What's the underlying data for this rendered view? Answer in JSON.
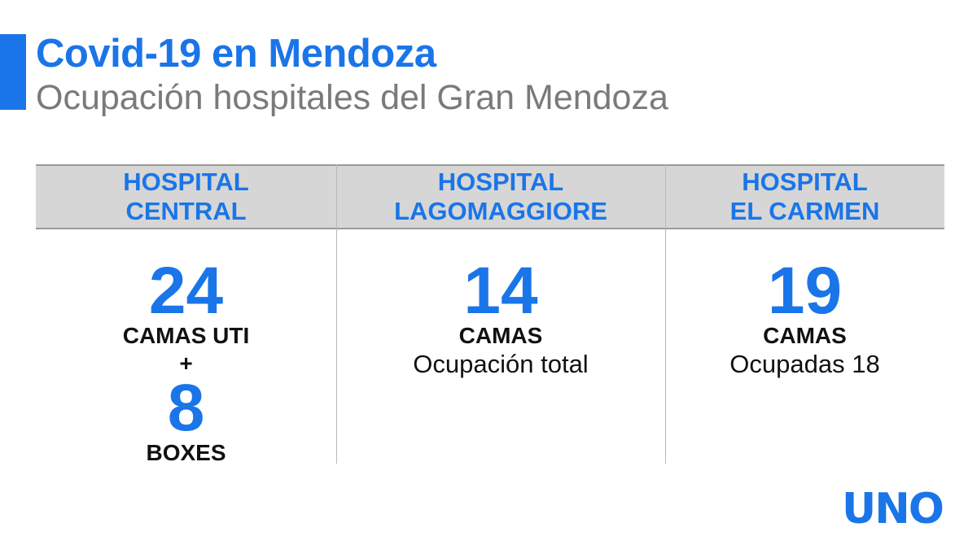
{
  "header": {
    "title": "Covid-19 en Mendoza",
    "subtitle": "Ocupación hospitales del Gran Mendoza"
  },
  "hospitals": [
    {
      "name_line1": "HOSPITAL",
      "name_line2": "CENTRAL",
      "value1": "24",
      "label1": "CAMAS UTI",
      "joiner": "+",
      "value2": "8",
      "label2": "BOXES"
    },
    {
      "name_line1": "HOSPITAL",
      "name_line2": "LAGOMAGGIORE",
      "value1": "14",
      "label1": "CAMAS",
      "note": "Ocupación total"
    },
    {
      "name_line1": "HOSPITAL",
      "name_line2": "EL CARMEN",
      "value1": "19",
      "label1": "CAMAS",
      "note": "Ocupadas 18"
    }
  ],
  "logo": {
    "text": "UNO"
  },
  "colors": {
    "accent": "#1a75e8",
    "subtitle": "#7a7a7a",
    "header_bg": "#d6d6d6",
    "text": "#111111"
  }
}
